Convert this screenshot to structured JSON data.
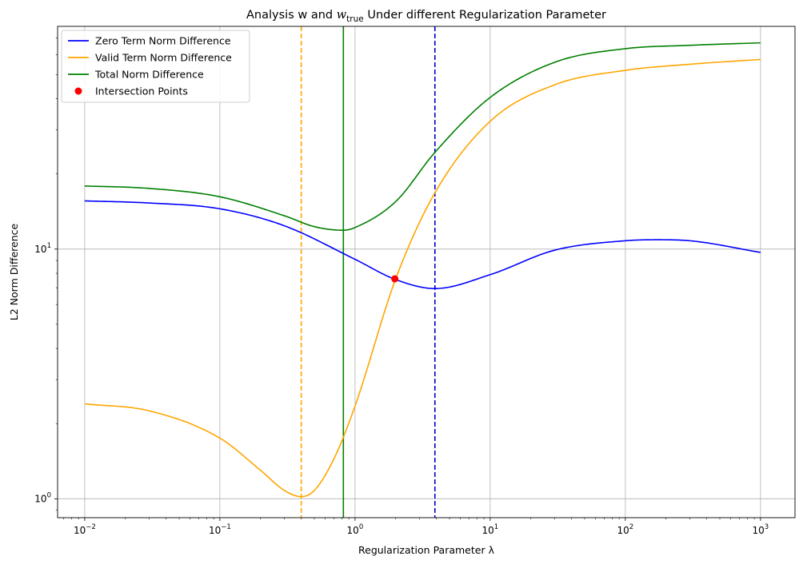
{
  "chart_data": {
    "type": "line",
    "title_prefix": "Analysis w and ",
    "title_math": "w",
    "title_math_sub": "true",
    "title_suffix": " Under different Regularization Parameter",
    "xlabel": "Regularization Parameter λ",
    "ylabel": "L2 Norm Difference",
    "xscale": "log",
    "yscale": "log",
    "xlim": [
      0.0063,
      1800
    ],
    "ylim": [
      0.84,
      78
    ],
    "grid": true,
    "legend_placement": "top-left",
    "x_ticks": [
      {
        "value": 0.01,
        "base": "10",
        "exp": "−2"
      },
      {
        "value": 0.1,
        "base": "10",
        "exp": "−1"
      },
      {
        "value": 1,
        "base": "10",
        "exp": "0"
      },
      {
        "value": 10,
        "base": "10",
        "exp": "1"
      },
      {
        "value": 100,
        "base": "10",
        "exp": "2"
      },
      {
        "value": 1000,
        "base": "10",
        "exp": "3"
      }
    ],
    "y_ticks": [
      {
        "value": 1,
        "base": "10",
        "exp": "0"
      },
      {
        "value": 10,
        "base": "10",
        "exp": "1"
      }
    ],
    "series": [
      {
        "name": "Zero Term Norm Difference",
        "color": "#0000ff",
        "x": [
          0.01,
          0.03,
          0.1,
          0.3,
          1,
          2,
          3.9,
          10,
          30,
          100,
          170,
          300,
          1000
        ],
        "y": [
          15.6,
          15.3,
          14.5,
          12.4,
          9.1,
          7.55,
          6.95,
          7.9,
          9.9,
          10.8,
          10.9,
          10.8,
          9.7
        ]
      },
      {
        "name": "Valid Term Norm Difference",
        "color": "#ffa500",
        "x": [
          0.01,
          0.03,
          0.1,
          0.2,
          0.3,
          0.4,
          0.5,
          0.7,
          1,
          2,
          3.9,
          10,
          30,
          100,
          300,
          1000
        ],
        "y": [
          2.4,
          2.25,
          1.75,
          1.3,
          1.08,
          1.02,
          1.08,
          1.45,
          2.35,
          7.6,
          16.8,
          32.5,
          45.5,
          52,
          55,
          57.5
        ]
      },
      {
        "name": "Total Norm Difference",
        "color": "#008000",
        "x": [
          0.01,
          0.03,
          0.1,
          0.3,
          0.5,
          0.82,
          1,
          2,
          3.9,
          10,
          30,
          100,
          300,
          1000
        ],
        "y": [
          17.9,
          17.5,
          16.2,
          13.6,
          12.3,
          11.9,
          12.2,
          15.5,
          24.4,
          40.5,
          56,
          63.5,
          65.5,
          67
        ]
      }
    ],
    "vertical_lines": [
      {
        "x": 0.4,
        "color": "#ffa500",
        "style": "dashed"
      },
      {
        "x": 0.82,
        "color": "#008000",
        "style": "solid"
      },
      {
        "x": 3.9,
        "color": "#0000cd",
        "style": "dashed"
      }
    ],
    "intersection_points": {
      "name": "Intersection Points",
      "color": "#ff0000",
      "points": [
        {
          "x": 1.97,
          "y": 7.6
        }
      ]
    }
  }
}
